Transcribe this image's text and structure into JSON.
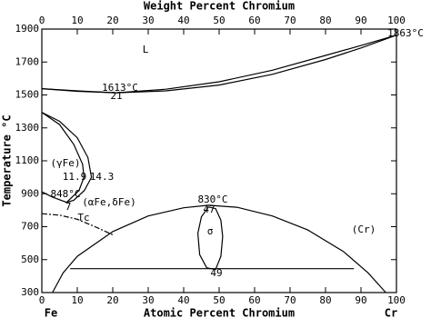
{
  "chart_data": {
    "type": "phase_diagram",
    "xlabel": "Atomic Percent Chromium",
    "x2label": "Weight Percent Chromium",
    "ylabel": "Temperature °C",
    "xlim": [
      0,
      100
    ],
    "xticks": [
      0,
      10,
      20,
      30,
      40,
      50,
      60,
      70,
      80,
      90,
      100
    ],
    "x2lim": [
      0,
      100
    ],
    "x2ticks": [
      0,
      10,
      20,
      30,
      40,
      50,
      60,
      70,
      80,
      90,
      100
    ],
    "ylim": [
      300,
      1900
    ],
    "yticks": [
      300,
      500,
      700,
      900,
      1100,
      1300,
      1500,
      1700,
      1900
    ],
    "end_labels": [
      "Fe",
      "Cr"
    ],
    "annotations": [
      "L",
      "1613°C",
      "21",
      "1863°C",
      "(γFe)",
      "11.9",
      "14.3",
      "848°C",
      "7",
      "(αFe,δFe)",
      "Tc",
      "830°C",
      "47",
      "σ",
      "(Cr)",
      "49"
    ],
    "series": [
      {
        "color": "#000000",
        "style": "solid",
        "x": [
          0,
          10,
          21,
          35,
          50,
          65,
          80,
          90,
          100
        ],
        "y": [
          1538,
          1525,
          1513,
          1535,
          1580,
          1650,
          1740,
          1800,
          1863
        ]
      },
      {
        "color": "#000000",
        "style": "solid",
        "x": [
          0,
          10,
          21,
          35,
          50,
          65,
          80,
          90,
          100
        ],
        "y": [
          1538,
          1522,
          1513,
          1525,
          1560,
          1625,
          1715,
          1785,
          1863
        ]
      },
      {
        "color": "#000000",
        "style": "solid",
        "x": [
          0,
          5,
          10,
          13,
          14,
          12,
          9,
          7,
          3,
          0
        ],
        "y": [
          1394,
          1340,
          1240,
          1120,
          1000,
          920,
          860,
          848,
          880,
          912
        ]
      },
      {
        "color": "#000000",
        "style": "solid",
        "x": [
          0,
          5,
          9,
          11.5,
          11.9,
          10.5,
          7
        ],
        "y": [
          1394,
          1320,
          1200,
          1080,
          1000,
          920,
          848
        ]
      },
      {
        "color": "#000000",
        "style": "dashdot",
        "x": [
          0,
          5,
          10,
          15,
          20
        ],
        "y": [
          779,
          770,
          745,
          700,
          651
        ]
      },
      {
        "color": "#000000",
        "style": "solid",
        "x": [
          3,
          6,
          10,
          20,
          30,
          40,
          47,
          55,
          65,
          75,
          85,
          92,
          97
        ],
        "y": [
          300,
          420,
          520,
          670,
          765,
          815,
          830,
          818,
          765,
          680,
          550,
          420,
          300
        ]
      },
      {
        "color": "#000000",
        "style": "solid",
        "x": [
          47,
          45,
          44,
          44.5,
          46.5,
          49,
          50.5,
          51,
          50.5,
          49,
          47
        ],
        "y": [
          820,
          760,
          660,
          530,
          450,
          440,
          520,
          640,
          740,
          810,
          820
        ]
      },
      {
        "color": "#000000",
        "style": "solid",
        "x": [
          8,
          88
        ],
        "y": [
          445,
          445
        ]
      }
    ]
  }
}
